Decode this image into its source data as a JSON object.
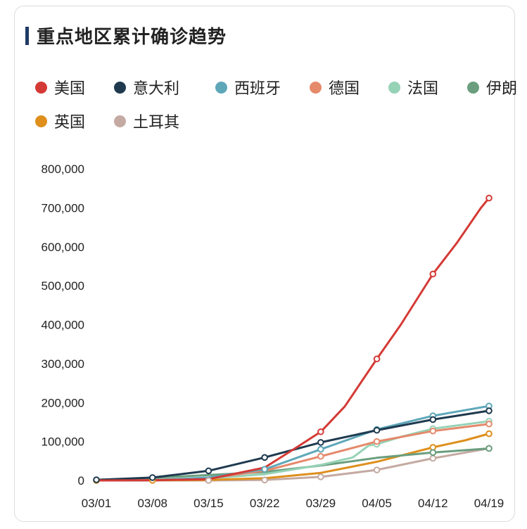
{
  "chart_data": {
    "type": "line",
    "title": "重点地区累计确诊趋势",
    "x_ticks": [
      "03/01",
      "03/08",
      "03/15",
      "03/22",
      "03/29",
      "04/05",
      "04/12",
      "04/19"
    ],
    "y_ticks": [
      "0",
      "100,000",
      "200,000",
      "300,000",
      "400,000",
      "500,000",
      "600,000",
      "700,000",
      "800,000"
    ],
    "ylim": [
      0,
      800000
    ],
    "x_range": [
      "03/01",
      "04/19"
    ],
    "grid": false,
    "legend_position": "top",
    "series": [
      {
        "name": "美国",
        "color": "#d43a35",
        "points": [
          [
            "03/01",
            0
          ],
          [
            "03/08",
            500
          ],
          [
            "03/15",
            3500
          ],
          [
            "03/22",
            33000
          ],
          [
            "03/26",
            85000
          ],
          [
            "03/29",
            125000
          ],
          [
            "04/01",
            190000
          ],
          [
            "04/05",
            312000
          ],
          [
            "04/08",
            400000
          ],
          [
            "04/12",
            530000
          ],
          [
            "04/15",
            610000
          ],
          [
            "04/18",
            700000
          ],
          [
            "04/19",
            725000
          ]
        ],
        "markers": [
          "03/29",
          "04/05",
          "04/12",
          "04/19"
        ]
      },
      {
        "name": "意大利",
        "color": "#1f3a4f",
        "points": [
          [
            "03/01",
            1700
          ],
          [
            "03/08",
            7400
          ],
          [
            "03/15",
            24700
          ],
          [
            "03/22",
            59000
          ],
          [
            "03/29",
            97700
          ],
          [
            "04/05",
            128900
          ],
          [
            "04/12",
            156300
          ],
          [
            "04/19",
            178900
          ]
        ],
        "markers": [
          "03/01",
          "03/08",
          "03/15",
          "03/22",
          "03/29",
          "04/05",
          "04/12",
          "04/19"
        ]
      },
      {
        "name": "西班牙",
        "color": "#5ea7b9",
        "points": [
          [
            "03/01",
            80
          ],
          [
            "03/08",
            600
          ],
          [
            "03/15",
            7800
          ],
          [
            "03/22",
            28600
          ],
          [
            "03/29",
            80000
          ],
          [
            "04/05",
            131000
          ],
          [
            "04/12",
            166000
          ],
          [
            "04/19",
            191000
          ]
        ],
        "markers": [
          "03/22",
          "03/29",
          "04/05",
          "04/12",
          "04/19"
        ]
      },
      {
        "name": "德国",
        "color": "#e5896b",
        "points": [
          [
            "03/01",
            130
          ],
          [
            "03/08",
            1000
          ],
          [
            "03/15",
            5800
          ],
          [
            "03/22",
            24800
          ],
          [
            "03/29",
            62000
          ],
          [
            "04/05",
            100000
          ],
          [
            "04/12",
            127000
          ],
          [
            "04/19",
            145000
          ]
        ],
        "markers": [
          "03/29",
          "04/05",
          "04/12",
          "04/19"
        ]
      },
      {
        "name": "法国",
        "color": "#96d2b6",
        "points": [
          [
            "03/01",
            130
          ],
          [
            "03/08",
            1100
          ],
          [
            "03/15",
            5400
          ],
          [
            "03/22",
            16000
          ],
          [
            "03/29",
            40000
          ],
          [
            "04/02",
            59000
          ],
          [
            "04/04",
            90000
          ],
          [
            "04/05",
            93000
          ],
          [
            "04/08",
            112000
          ],
          [
            "04/12",
            133000
          ],
          [
            "04/19",
            152000
          ]
        ],
        "markers": [
          "04/05",
          "04/12",
          "04/19"
        ]
      },
      {
        "name": "伊朗",
        "color": "#6a9e7e",
        "points": [
          [
            "03/01",
            1500
          ],
          [
            "03/08",
            6500
          ],
          [
            "03/15",
            13900
          ],
          [
            "03/22",
            21600
          ],
          [
            "03/29",
            38300
          ],
          [
            "04/05",
            58200
          ],
          [
            "04/12",
            71700
          ],
          [
            "04/19",
            82200
          ]
        ],
        "markers": [
          "04/12",
          "04/19"
        ]
      },
      {
        "name": "英国",
        "color": "#de8f1c",
        "points": [
          [
            "03/01",
            40
          ],
          [
            "03/08",
            280
          ],
          [
            "03/15",
            1400
          ],
          [
            "03/22",
            5700
          ],
          [
            "03/29",
            19500
          ],
          [
            "04/05",
            48000
          ],
          [
            "04/12",
            85000
          ],
          [
            "04/16",
            103000
          ],
          [
            "04/19",
            120000
          ]
        ],
        "markers": [
          "03/01",
          "03/08",
          "04/12",
          "04/19"
        ]
      },
      {
        "name": "土耳其",
        "color": "#c4aaa2",
        "points": [
          [
            "03/01",
            0
          ],
          [
            "03/08",
            0
          ],
          [
            "03/15",
            5
          ],
          [
            "03/22",
            1200
          ],
          [
            "03/29",
            9200
          ],
          [
            "04/05",
            27000
          ],
          [
            "04/12",
            56900
          ],
          [
            "04/19",
            82300
          ]
        ],
        "markers": [
          "03/15",
          "03/22",
          "03/29",
          "04/05",
          "04/12",
          "04/19"
        ]
      }
    ]
  }
}
